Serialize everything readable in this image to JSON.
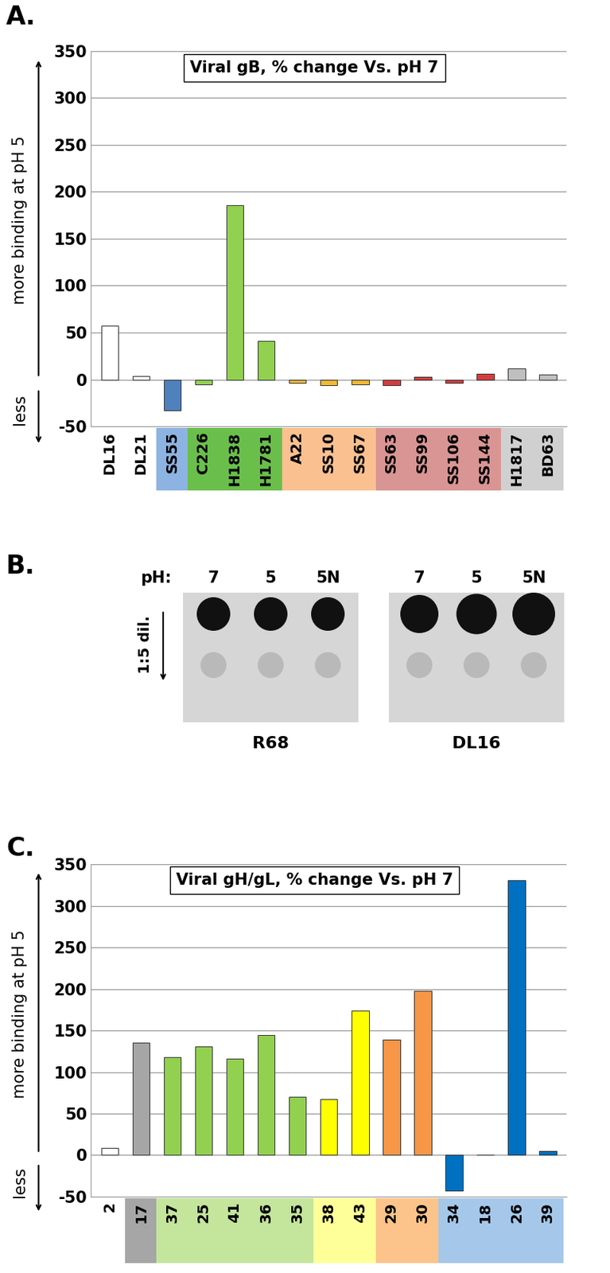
{
  "panel_labels": [
    "A.",
    "B.",
    "C."
  ],
  "chart_data": [
    {
      "type": "bar",
      "title": "Viral gB, % change Vs. pH 7",
      "y_label": "more binding at pH 5",
      "annotations": [
        "less"
      ],
      "categories": [
        "DL16",
        "DL21",
        "SS55",
        "C226",
        "H1838",
        "H1781",
        "A22",
        "SS10",
        "SS67",
        "SS63",
        "SS99",
        "SS106",
        "SS144",
        "H1817",
        "BD63"
      ],
      "values": [
        57,
        4,
        -33,
        -5,
        186,
        41,
        -4,
        -6,
        -5,
        -6,
        3,
        -4,
        6,
        12,
        5
      ],
      "colors": [
        "#ffffff",
        "#ffffff",
        "#4f81bd",
        "#92d050",
        "#92d050",
        "#92d050",
        "#f7b733",
        "#f7b733",
        "#f7b733",
        "#d63c3c",
        "#d63c3c",
        "#d63c3c",
        "#d63c3c",
        "#bfbfbf",
        "#bfbfbf"
      ],
      "category_colors": [
        null,
        null,
        "#8db3e2",
        "#6abf4b",
        "#6abf4b",
        "#6abf4b",
        "#fac090",
        "#fac090",
        "#fac090",
        "#d99594",
        "#d99594",
        "#d99594",
        "#d99594",
        "#d0d0d0",
        "#d0d0d0"
      ],
      "ylim": [
        -50,
        350
      ],
      "yticks": [
        -50,
        0,
        50,
        100,
        150,
        200,
        250,
        300,
        350
      ],
      "grid": true
    },
    {
      "type": "bar",
      "title": "Viral gH/gL, % change Vs. pH 7",
      "y_label": "more binding at pH 5",
      "annotations": [
        "less"
      ],
      "categories": [
        "2",
        "17",
        "37",
        "25",
        "41",
        "36",
        "35",
        "38",
        "43",
        "29",
        "30",
        "34",
        "18",
        "26",
        "39"
      ],
      "values": [
        9,
        135,
        118,
        131,
        116,
        145,
        70,
        67,
        174,
        139,
        198,
        -43,
        0,
        331,
        5
      ],
      "colors": [
        "#ffffff",
        "#a6a6a6",
        "#92d050",
        "#92d050",
        "#92d050",
        "#92d050",
        "#92d050",
        "#ffff00",
        "#ffff00",
        "#f79646",
        "#f79646",
        "#0070c0",
        "#0070c0",
        "#0070c0",
        "#0070c0"
      ],
      "category_colors": [
        null,
        "#a6a6a6",
        "#c4e59c",
        "#c4e59c",
        "#c4e59c",
        "#c4e59c",
        "#c4e59c",
        "#ffff99",
        "#ffff99",
        "#fcc48a",
        "#fcc48a",
        "#a5c8ea",
        "#a5c8ea",
        "#a5c8ea",
        "#a5c8ea"
      ],
      "ylim": [
        -50,
        350
      ],
      "yticks": [
        -50,
        0,
        50,
        100,
        150,
        200,
        250,
        300,
        350
      ],
      "grid": true
    }
  ],
  "blot": {
    "ph_label": "pH:",
    "conditions": [
      "7",
      "5",
      "5N"
    ],
    "dilution_label": "1:5 dil.",
    "antibodies": [
      "R68",
      "DL16"
    ]
  }
}
